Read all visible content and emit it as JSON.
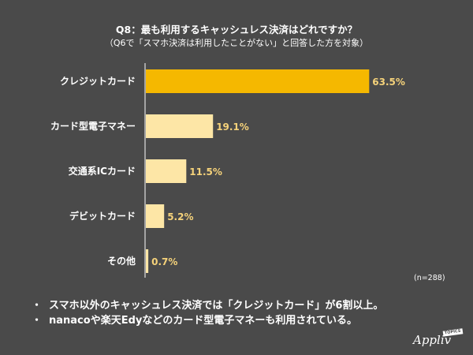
{
  "title": "Q8：最も利用するキャッシュレス決済はどれですか？",
  "subtitle": "（Q6で「スマホ決済は利用したことがない」と回答した方を対象）",
  "sample_size": "(n=288)",
  "notes": [
    "スマホ以外のキャッシュレス決済では「クレジットカード」が6割以上。",
    "nanacoや楽天Edyなどのカード型電子マネーも利用されている。"
  ],
  "bullet": "・",
  "brand": {
    "name": "Appliv",
    "badge": "TOPICS"
  },
  "colors": {
    "background": "#4a4a4a",
    "highlight_bar": "#f5b800",
    "bar": "#fde6a6",
    "value_label": "#f5d27a",
    "axis": "#ffffff"
  },
  "chart_data": {
    "type": "bar",
    "orientation": "horizontal",
    "categories": [
      "クレジットカード",
      "カード型電子マネー",
      "交通系ICカード",
      "デビットカード",
      "その他"
    ],
    "values": [
      63.5,
      19.1,
      11.5,
      5.2,
      0.7
    ],
    "value_labels": [
      "63.5%",
      "19.1%",
      "11.5%",
      "5.2%",
      "0.7%"
    ],
    "unit": "%",
    "xlim": [
      0,
      65
    ],
    "highlight_index": 0,
    "grid": false,
    "legend": "none"
  }
}
